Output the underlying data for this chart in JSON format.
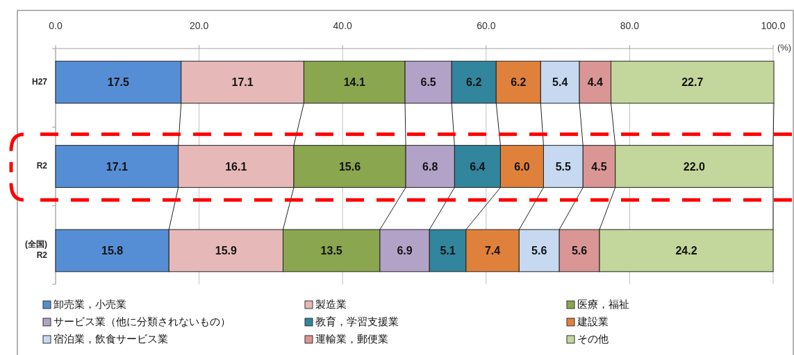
{
  "chart_data": {
    "type": "bar",
    "orientation": "horizontal",
    "stacked": true,
    "categories": [
      "H27",
      "R2",
      "(全国)\nR2"
    ],
    "xlabel": "(%)",
    "xlim": [
      0,
      100
    ],
    "xticks": [
      {
        "value": 0,
        "label": "0.0"
      },
      {
        "value": 20,
        "label": "20.0"
      },
      {
        "value": 40,
        "label": "40.0"
      },
      {
        "value": 60,
        "label": "60.0"
      },
      {
        "value": 80,
        "label": "80.0"
      },
      {
        "value": 100,
        "label": "100.0"
      }
    ],
    "grid": "x",
    "legend": "bottom",
    "series": [
      {
        "name": "卸売業，小売業",
        "color": "#558ed5",
        "values": [
          17.5,
          17.1,
          15.8
        ],
        "value_labels": [
          "17.5",
          "17.1",
          "15.8"
        ]
      },
      {
        "name": "製造業",
        "color": "#e6b9b8",
        "values": [
          17.1,
          16.1,
          15.9
        ],
        "value_labels": [
          "17.1",
          "16.1",
          "15.9"
        ]
      },
      {
        "name": "医療，福祉",
        "color": "#8aa64e",
        "values": [
          14.1,
          15.6,
          13.5
        ],
        "value_labels": [
          "14.1",
          "15.6",
          "13.5"
        ]
      },
      {
        "name": "サービス業（他に分類されないもの）",
        "color": "#b3a2c7",
        "values": [
          6.5,
          6.8,
          6.9
        ],
        "value_labels": [
          "6.5",
          "6.8",
          "6.9"
        ]
      },
      {
        "name": "教育，学習支援業",
        "color": "#31859c",
        "values": [
          6.2,
          6.4,
          5.1
        ],
        "value_labels": [
          "6.2",
          "6.4",
          "5.1"
        ]
      },
      {
        "name": "建設業",
        "color": "#e0813b",
        "values": [
          6.2,
          6.0,
          7.4
        ],
        "value_labels": [
          "6.2",
          "6.0",
          "7.4"
        ]
      },
      {
        "name": "宿泊業，飲食サービス業",
        "color": "#c6d9f1",
        "values": [
          5.4,
          5.5,
          5.6
        ],
        "value_labels": [
          "5.4",
          "5.5",
          "5.6"
        ]
      },
      {
        "name": "運輸業，郵便業",
        "color": "#d99694",
        "values": [
          4.4,
          4.5,
          5.6
        ],
        "value_labels": [
          "4.4",
          "4.5",
          "5.6"
        ]
      },
      {
        "name": "その他",
        "color": "#c3d69b",
        "values": [
          22.7,
          22.0,
          24.2
        ],
        "value_labels": [
          "22.7",
          "22.0",
          "24.2"
        ]
      }
    ]
  }
}
